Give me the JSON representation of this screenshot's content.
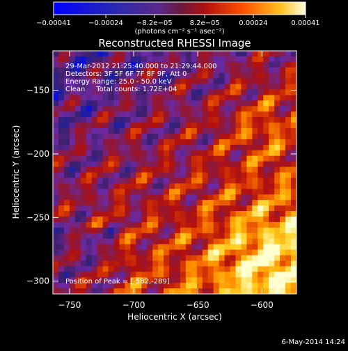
{
  "colorbar": {
    "tick_labels": [
      "−0.00041",
      "−0.00024",
      "−8.2e−05",
      "8.2e−05",
      "0.00024",
      "0.00041"
    ],
    "tick_values": [
      -0.00041,
      -0.00024,
      -8.2e-05,
      8.2e-05,
      0.00024,
      0.00041
    ],
    "range": [
      -0.00041,
      0.00041
    ],
    "unit_label": "(photons cm⁻² s⁻¹ asec⁻²)"
  },
  "footer": {
    "date_stamp": "6-May-2014 14:24"
  },
  "chart_data": {
    "type": "heatmap",
    "title": "Reconstructed RHESSI Image",
    "xlabel": "Heliocentric X (arcsec)",
    "ylabel": "Heliocentric Y (arcsec)",
    "xlim": [
      -763,
      -573
    ],
    "ylim": [
      -310,
      -119
    ],
    "xticks": [
      -750,
      -700,
      -650,
      -600
    ],
    "yticks": [
      -150,
      -200,
      -250,
      -300
    ],
    "xtick_labels": [
      "−750",
      "−700",
      "−650",
      "−600"
    ],
    "ytick_labels": [
      "−150",
      "−200",
      "−250",
      "−300"
    ],
    "colormap": [
      "#0000ff",
      "#2020a0",
      "#40206a",
      "#6a2aa6",
      "#8a1a40",
      "#b01010",
      "#e04000",
      "#ff9000",
      "#ffd020",
      "#ffffd0"
    ],
    "peak_marker": {
      "x": -582,
      "y": -289
    },
    "annotations": [
      "29-Mar-2012 21:25:40.000 to 21:29:44.000",
      "Detectors: 3F 5F 6F 7F 8F 9F, Att 0",
      "Energy Range: 25.0 - 50.0 keV",
      "Clean     Total counts: 1.72E+04",
      "Position of Peak = [-582,-289]"
    ]
  }
}
